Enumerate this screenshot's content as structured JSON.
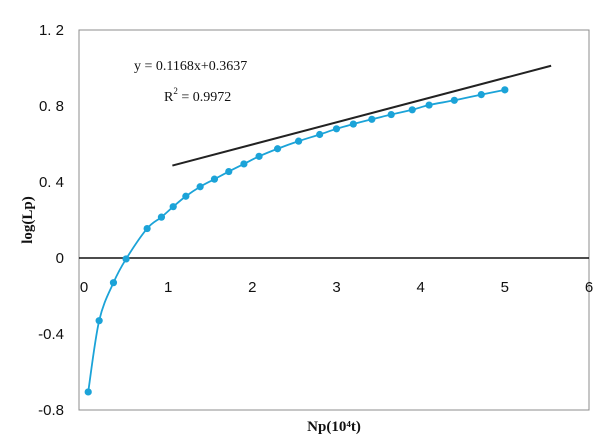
{
  "chart_data": {
    "type": "scatter",
    "xlabel": "Np(10⁴t)",
    "ylabel": "log(Lp)",
    "xlim": [
      0,
      6
    ],
    "ylim": [
      -0.8,
      1.2
    ],
    "x_ticks": [
      {
        "value": 0,
        "label": "0"
      },
      {
        "value": 1,
        "label": "1"
      },
      {
        "value": 2,
        "label": "2"
      },
      {
        "value": 3,
        "label": "3"
      },
      {
        "value": 4,
        "label": "4"
      },
      {
        "value": 5,
        "label": "5"
      },
      {
        "value": 6,
        "label": "6"
      }
    ],
    "y_ticks": [
      {
        "value": 1.2,
        "label": "1. 2"
      },
      {
        "value": 0.8,
        "label": "0. 8"
      },
      {
        "value": 0.4,
        "label": "0. 4"
      },
      {
        "value": 0,
        "label": "0"
      },
      {
        "value": -0.4,
        "label": "-0.4"
      },
      {
        "value": -0.8,
        "label": "-0.8"
      }
    ],
    "grid": false,
    "series": [
      {
        "color": "#1ba3d8",
        "x": [
          0.05,
          0.18,
          0.35,
          0.5,
          0.75,
          0.92,
          1.06,
          1.21,
          1.38,
          1.55,
          1.72,
          1.9,
          2.08,
          2.3,
          2.55,
          2.8,
          3.0,
          3.2,
          3.42,
          3.65,
          3.9,
          4.1,
          4.4,
          4.72,
          5.0
        ],
        "y": [
          -0.705,
          -0.33,
          -0.13,
          -0.005,
          0.155,
          0.215,
          0.27,
          0.325,
          0.375,
          0.415,
          0.455,
          0.495,
          0.535,
          0.575,
          0.615,
          0.65,
          0.68,
          0.705,
          0.73,
          0.755,
          0.78,
          0.805,
          0.83,
          0.86,
          0.885
        ]
      }
    ],
    "trendline": {
      "color": "#222222",
      "slope": 0.1168,
      "intercept": 0.3637,
      "x_range": [
        1.05,
        5.55
      ],
      "equation": "y = 0.1168x+0.3637",
      "r2_base": "R",
      "r2_exp": "2",
      "r2_value": " = 0.9972"
    }
  }
}
